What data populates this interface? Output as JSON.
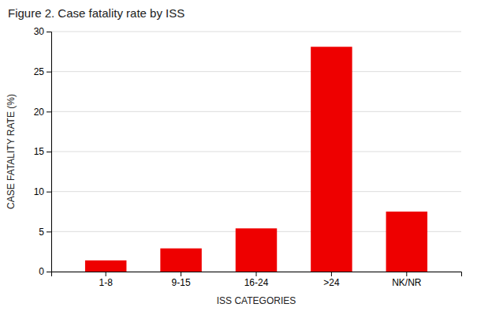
{
  "chart_data": {
    "type": "bar",
    "title": "Figure 2. Case fatality rate by ISS",
    "categories": [
      "1-8",
      "9-15",
      "16-24",
      ">24",
      "NK/NR"
    ],
    "values": [
      1.4,
      2.9,
      5.4,
      28.1,
      7.5
    ],
    "color": "#EE0000",
    "xlabel": "ISS CATEGORIES",
    "ylabel": "CASE FATALITY RATE (%)",
    "ylim": [
      0,
      30
    ],
    "yticks": [
      0,
      5,
      10,
      15,
      20,
      25,
      30
    ],
    "grid": true
  }
}
